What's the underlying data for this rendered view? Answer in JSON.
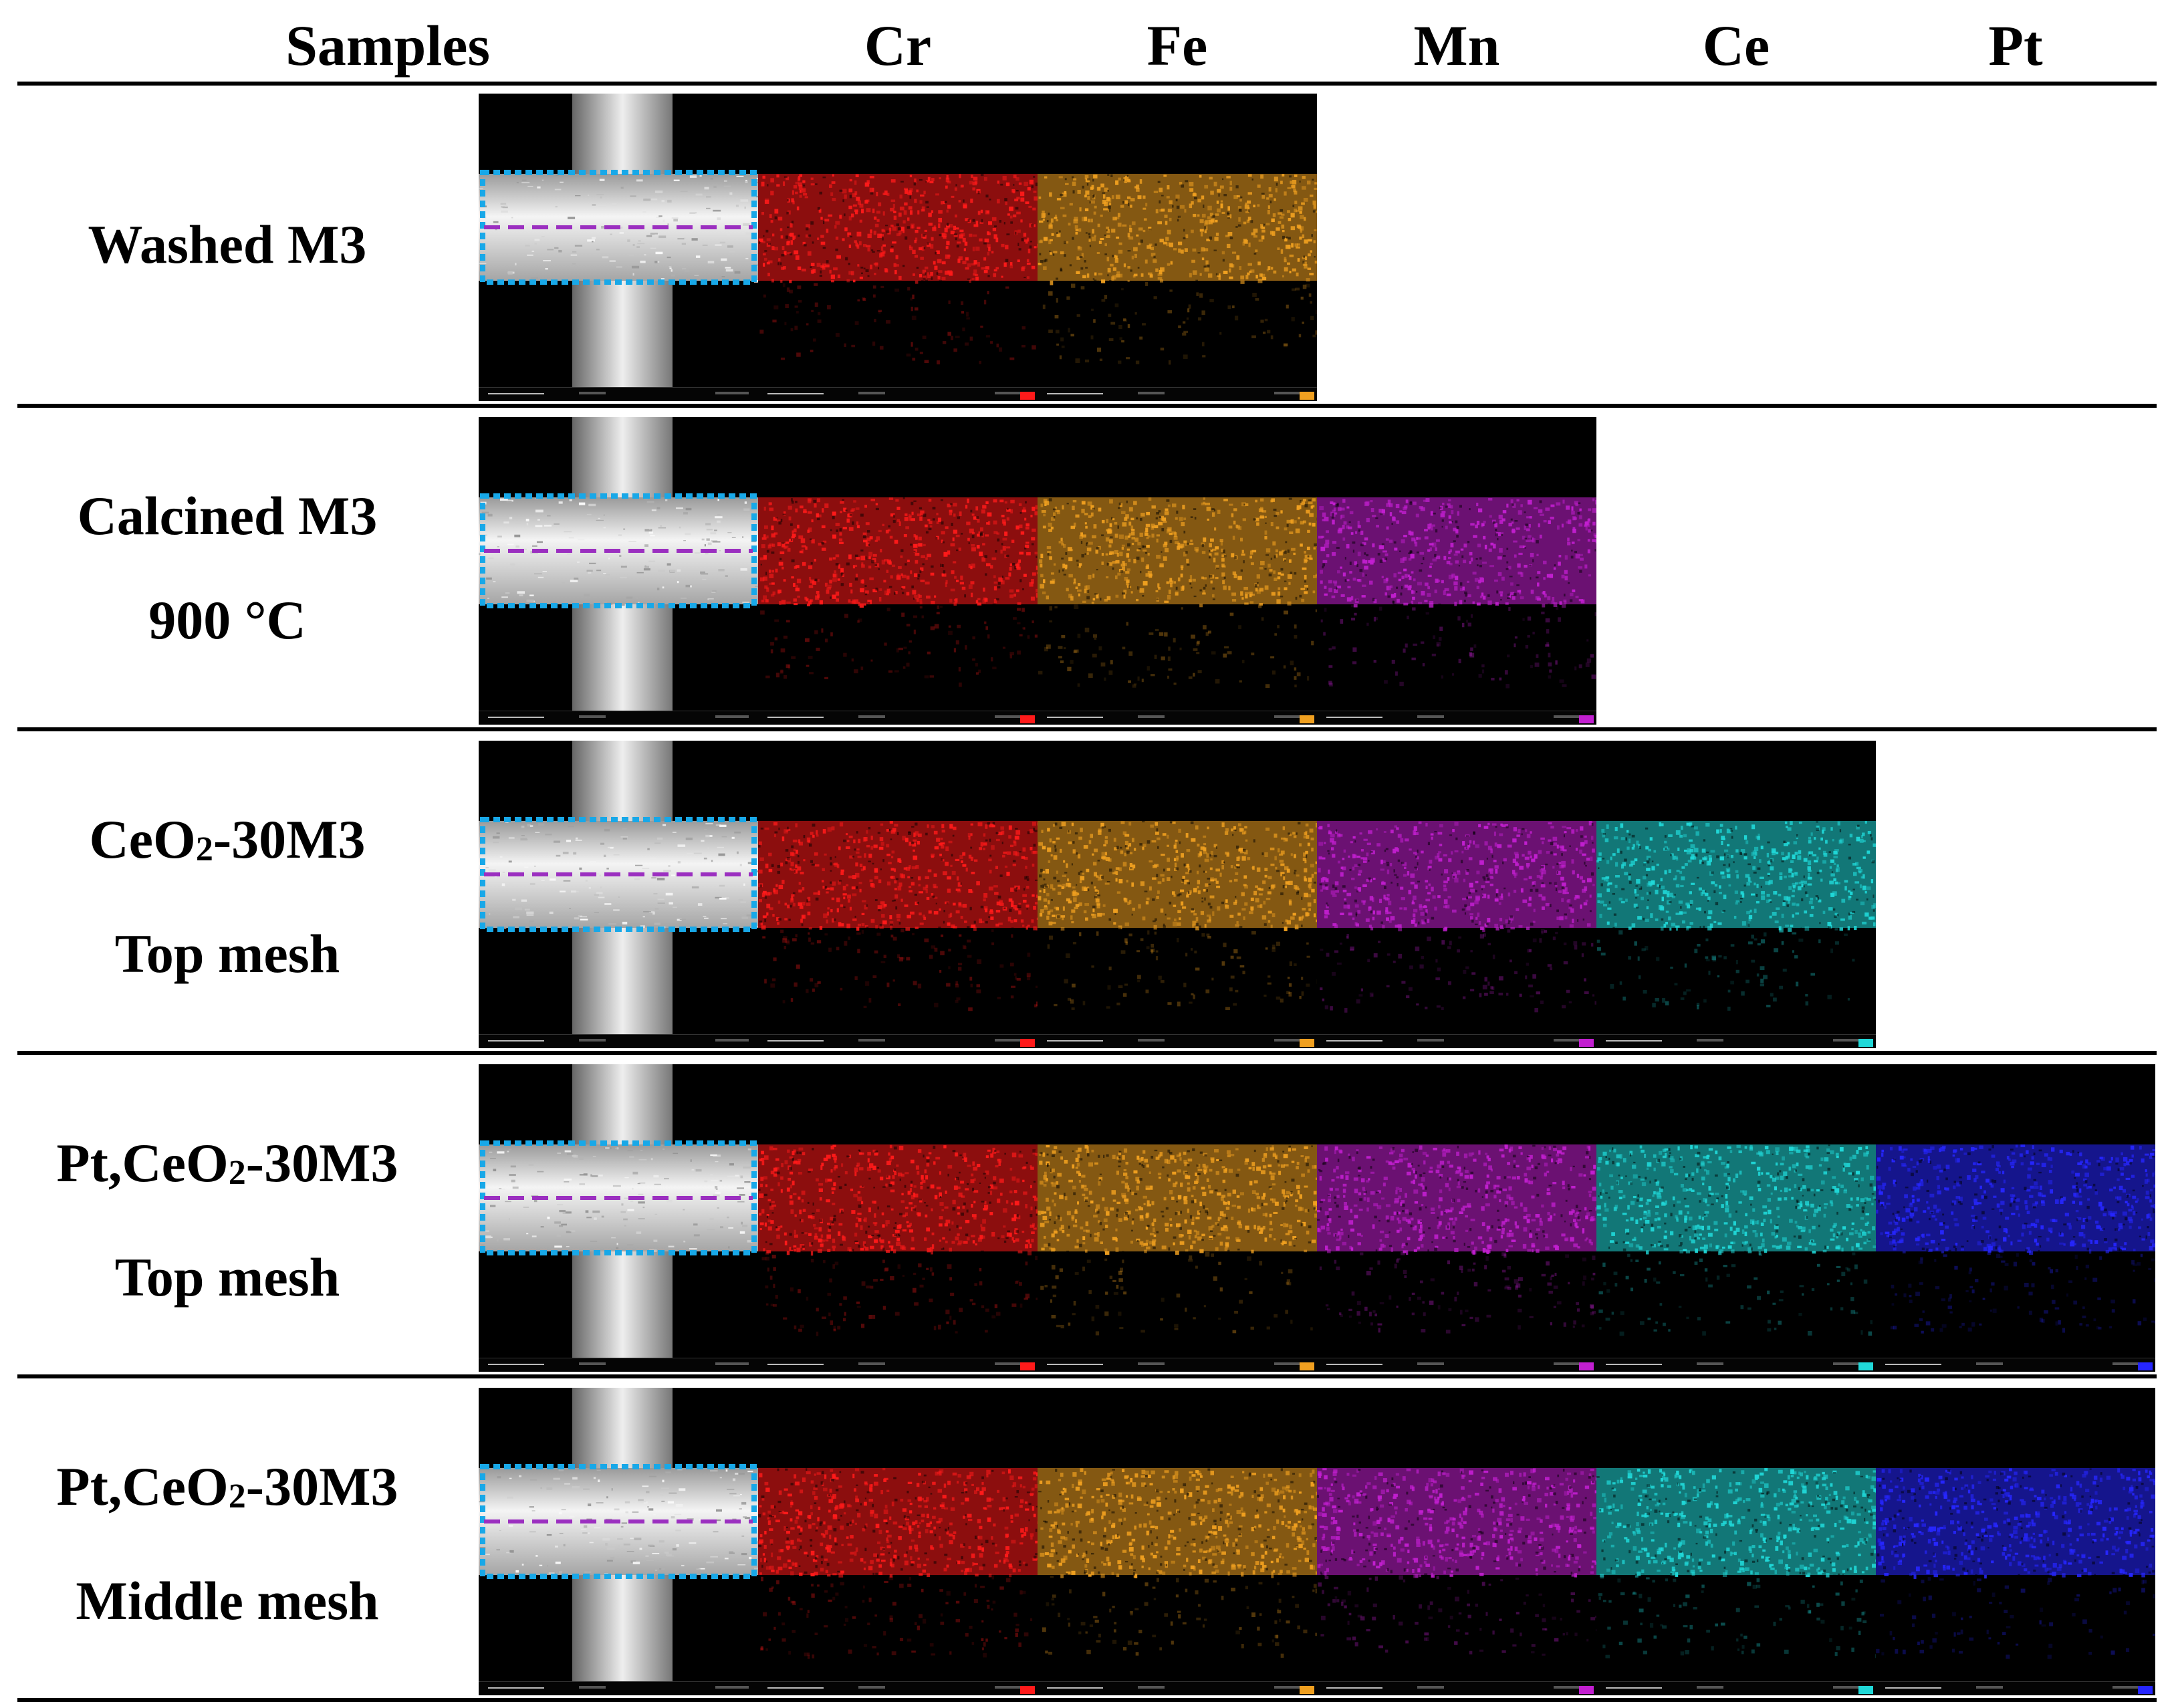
{
  "header": {
    "samples": "Samples",
    "elements": [
      "Cr",
      "Fe",
      "Mn",
      "Ce",
      "Pt"
    ]
  },
  "element_colors": {
    "Cr": "#ff1a1a",
    "Fe": "#f0a020",
    "Mn": "#c21fd0",
    "Ce": "#20d8d8",
    "Pt": "#2626ff"
  },
  "rows": [
    {
      "line1": "Washed M3",
      "line2": "",
      "maps": [
        "Cr",
        "Fe"
      ]
    },
    {
      "line1": "Calcined M3",
      "line2": "900 °C",
      "maps": [
        "Cr",
        "Fe",
        "Mn"
      ]
    },
    {
      "line1_pre": "CeO",
      "line1_sub": "2",
      "line1_post": "-30M3",
      "line2": "Top mesh",
      "maps": [
        "Cr",
        "Fe",
        "Mn",
        "Ce"
      ]
    },
    {
      "line1_pre": "Pt,CeO",
      "line1_sub": "2",
      "line1_post": "-30M3",
      "line2": "Top mesh",
      "maps": [
        "Cr",
        "Fe",
        "Mn",
        "Ce",
        "Pt"
      ]
    },
    {
      "line1_pre": "Pt,CeO",
      "line1_sub": "2",
      "line1_post": "-30M3",
      "line2": "Middle mesh",
      "maps": [
        "Cr",
        "Fe",
        "Mn",
        "Ce",
        "Pt"
      ]
    }
  ]
}
